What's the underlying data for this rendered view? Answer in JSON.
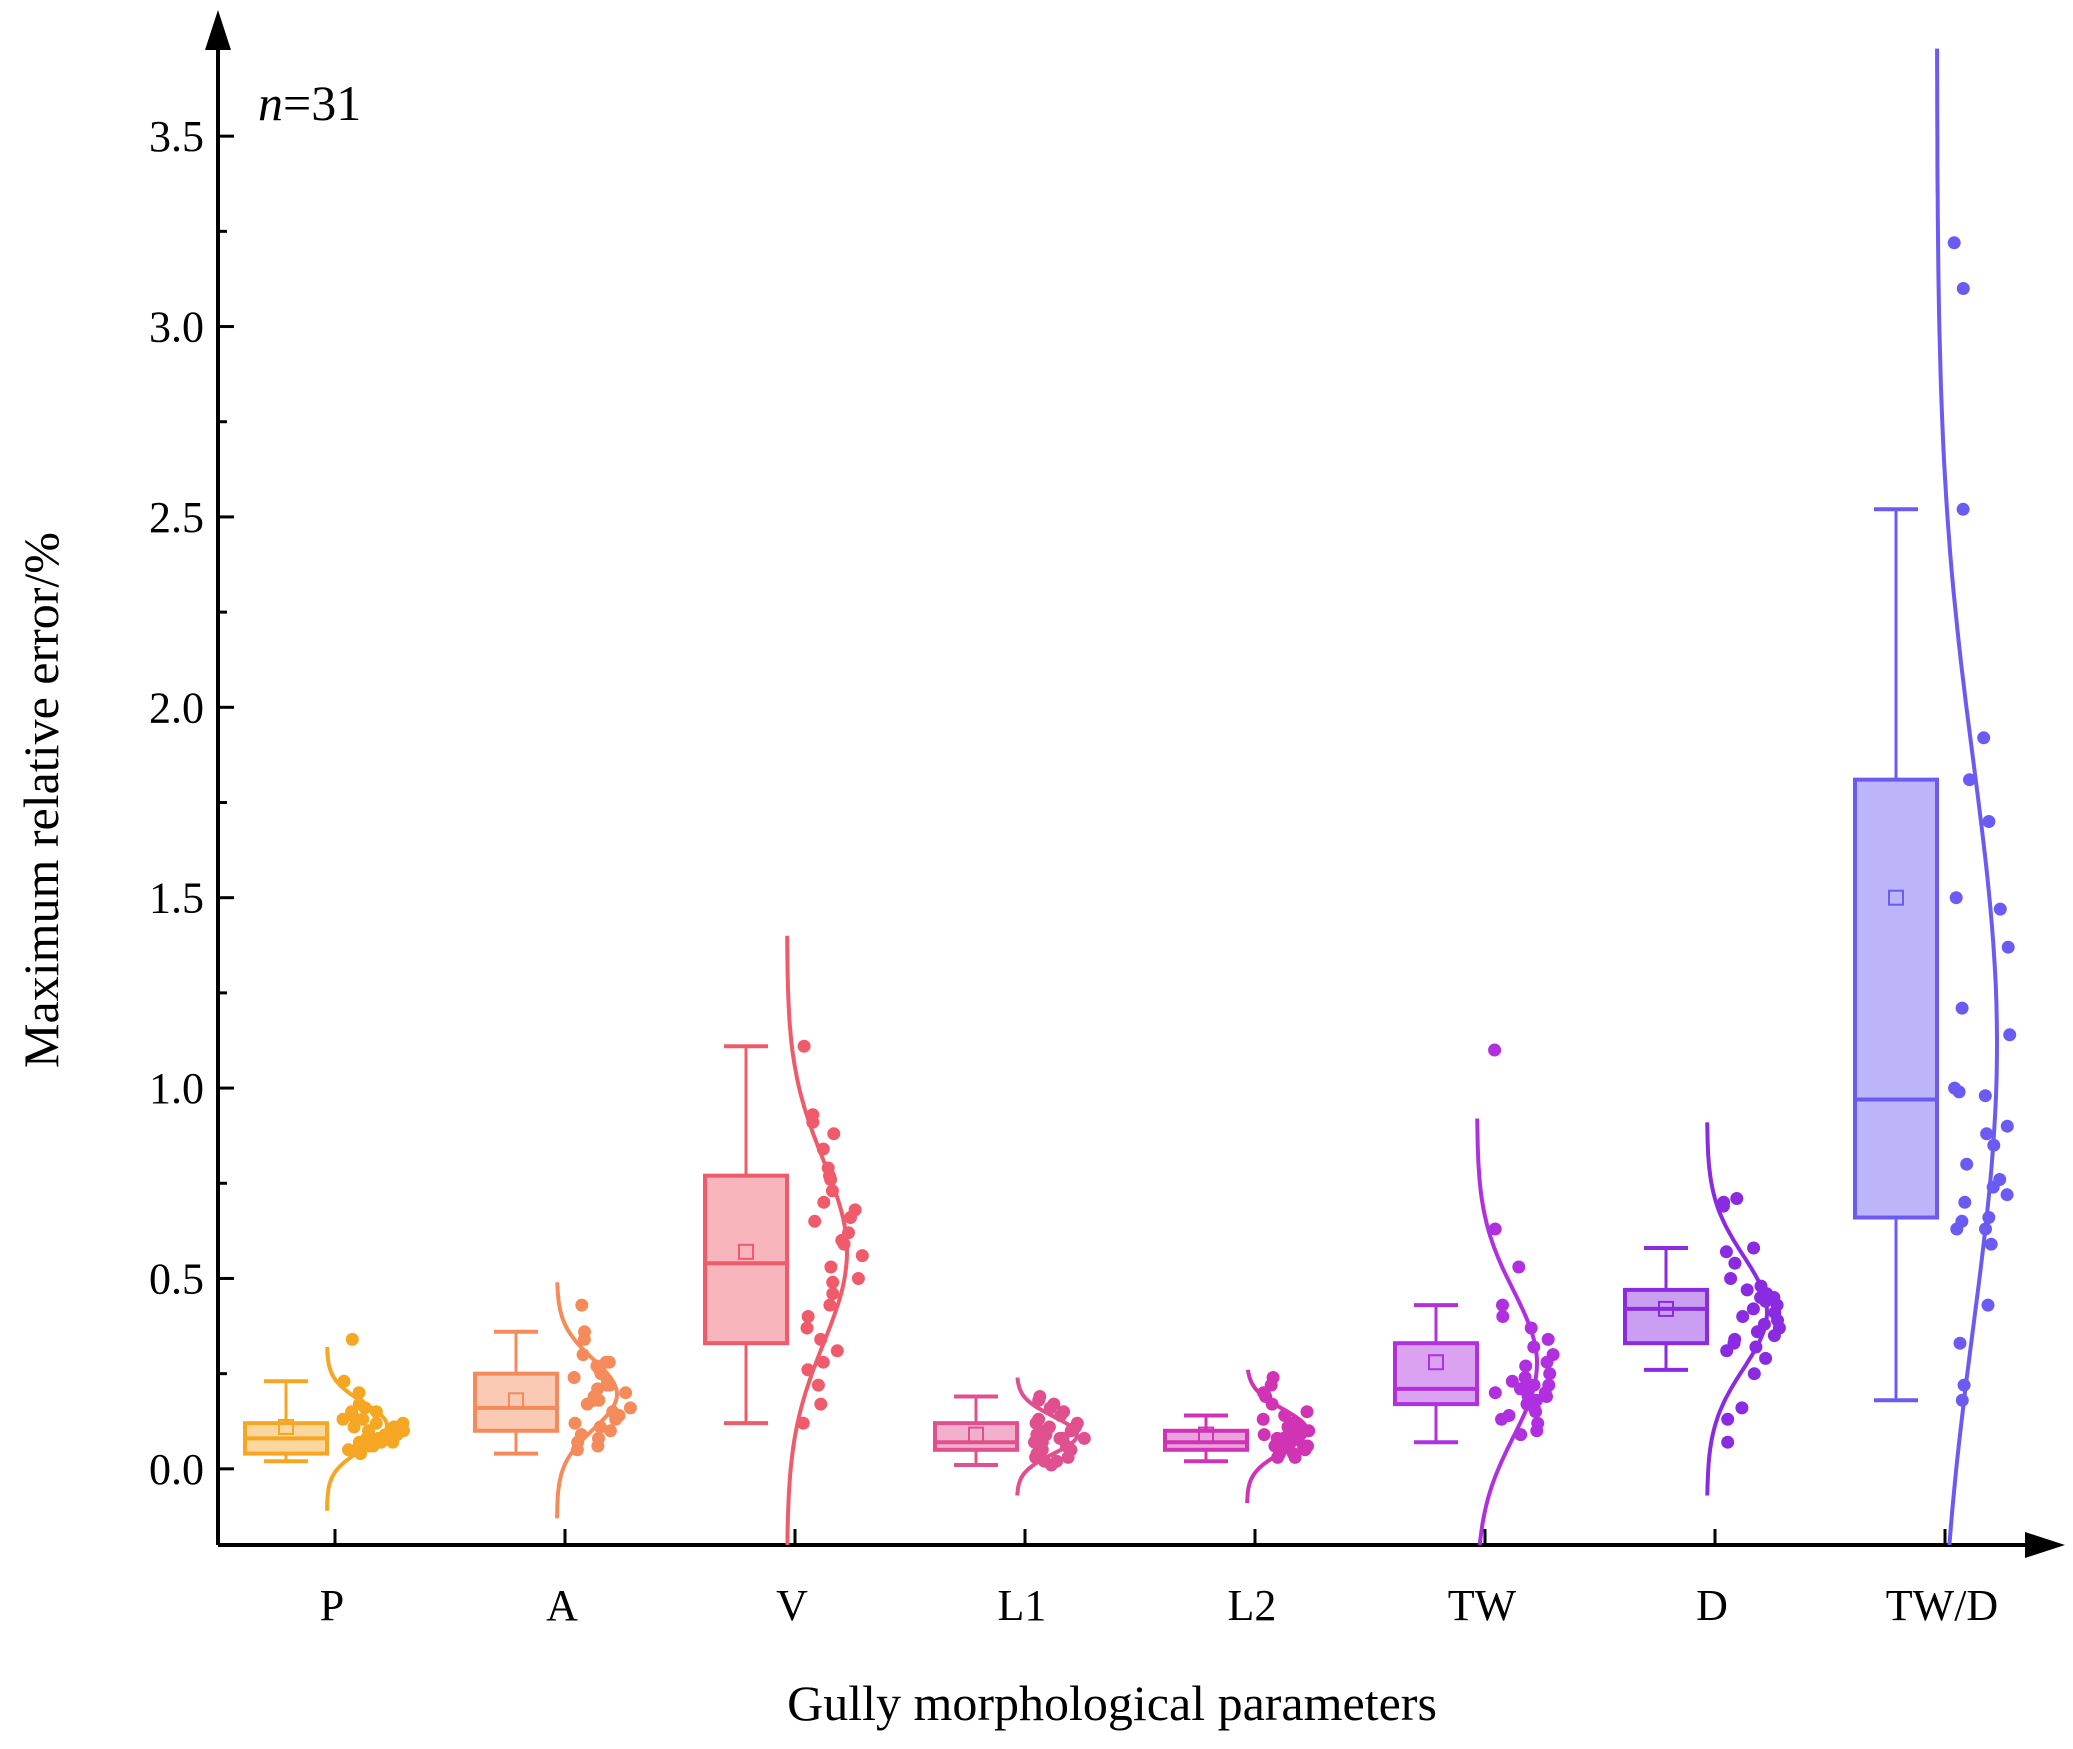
{
  "chart_data": {
    "type": "box-with-distribution",
    "title": "",
    "xlabel": "Gully morphological parameters",
    "ylabel": "Maximum relative error/%",
    "ylim": [
      -0.2,
      3.7
    ],
    "yticks": [
      0.0,
      0.5,
      1.0,
      1.5,
      2.0,
      2.5,
      3.0,
      3.5
    ],
    "ytick_labels": [
      "0.0",
      "0.5",
      "1.0",
      "1.5",
      "2.0",
      "2.5",
      "3.0",
      "3.5"
    ],
    "annotation": {
      "italic": "n",
      "rest": "=31"
    },
    "series": [
      {
        "name": "P",
        "color": "#F5A623",
        "whisker_low": 0.02,
        "q1": 0.04,
        "median": 0.08,
        "q3": 0.12,
        "whisker_high": 0.23,
        "mean": 0.11,
        "curve_range": [
          -0.11,
          0.32
        ],
        "points": [
          0.34,
          0.23,
          0.2,
          0.17,
          0.16,
          0.15,
          0.14,
          0.13,
          0.12,
          0.12,
          0.11,
          0.11,
          0.1,
          0.1,
          0.09,
          0.09,
          0.08,
          0.08,
          0.07,
          0.07,
          0.06,
          0.06,
          0.05,
          0.05,
          0.05,
          0.04,
          0.13,
          0.15,
          0.1,
          0.07,
          0.09
        ]
      },
      {
        "name": "A",
        "color": "#F58A5A",
        "whisker_low": 0.04,
        "q1": 0.1,
        "median": 0.16,
        "q3": 0.25,
        "whisker_high": 0.36,
        "mean": 0.18,
        "curve_range": [
          -0.13,
          0.49
        ],
        "points": [
          0.43,
          0.36,
          0.34,
          0.3,
          0.28,
          0.28,
          0.27,
          0.26,
          0.25,
          0.24,
          0.23,
          0.22,
          0.21,
          0.2,
          0.19,
          0.18,
          0.17,
          0.16,
          0.15,
          0.14,
          0.13,
          0.12,
          0.11,
          0.1,
          0.09,
          0.08,
          0.07,
          0.06,
          0.05,
          0.18,
          0.22
        ]
      },
      {
        "name": "V",
        "color": "#EF5B6B",
        "whisker_low": 0.12,
        "q1": 0.33,
        "median": 0.54,
        "q3": 0.77,
        "whisker_high": 1.11,
        "mean": 0.57,
        "curve_range": [
          -0.2,
          1.4
        ],
        "points": [
          1.11,
          0.93,
          0.91,
          0.88,
          0.84,
          0.79,
          0.77,
          0.76,
          0.73,
          0.7,
          0.68,
          0.66,
          0.65,
          0.62,
          0.59,
          0.56,
          0.53,
          0.5,
          0.49,
          0.46,
          0.43,
          0.4,
          0.37,
          0.34,
          0.31,
          0.28,
          0.26,
          0.22,
          0.17,
          0.12,
          0.6
        ]
      },
      {
        "name": "L1",
        "color": "#E0508E",
        "whisker_low": 0.01,
        "q1": 0.05,
        "median": 0.07,
        "q3": 0.12,
        "whisker_high": 0.19,
        "mean": 0.09,
        "curve_range": [
          -0.07,
          0.24
        ],
        "points": [
          0.19,
          0.18,
          0.17,
          0.16,
          0.15,
          0.14,
          0.13,
          0.12,
          0.12,
          0.11,
          0.11,
          0.1,
          0.1,
          0.09,
          0.09,
          0.08,
          0.08,
          0.07,
          0.07,
          0.06,
          0.06,
          0.05,
          0.05,
          0.04,
          0.04,
          0.03,
          0.03,
          0.02,
          0.02,
          0.01,
          0.08
        ]
      },
      {
        "name": "L2",
        "color": "#D033B4",
        "whisker_low": 0.02,
        "q1": 0.05,
        "median": 0.07,
        "q3": 0.1,
        "whisker_high": 0.14,
        "mean": 0.09,
        "curve_range": [
          -0.09,
          0.26
        ],
        "points": [
          0.24,
          0.22,
          0.2,
          0.19,
          0.17,
          0.15,
          0.14,
          0.13,
          0.12,
          0.11,
          0.1,
          0.1,
          0.09,
          0.09,
          0.08,
          0.08,
          0.07,
          0.07,
          0.06,
          0.06,
          0.05,
          0.05,
          0.04,
          0.04,
          0.03,
          0.03,
          0.11,
          0.12,
          0.08,
          0.06,
          0.05
        ]
      },
      {
        "name": "TW",
        "color": "#B030E0",
        "whisker_low": 0.07,
        "q1": 0.17,
        "median": 0.21,
        "q3": 0.33,
        "whisker_high": 0.43,
        "mean": 0.28,
        "curve_range": [
          -0.2,
          0.92
        ],
        "points": [
          1.1,
          0.63,
          0.53,
          0.43,
          0.4,
          0.37,
          0.34,
          0.32,
          0.3,
          0.28,
          0.27,
          0.25,
          0.24,
          0.23,
          0.22,
          0.21,
          0.21,
          0.2,
          0.2,
          0.19,
          0.19,
          0.18,
          0.17,
          0.16,
          0.15,
          0.14,
          0.13,
          0.12,
          0.1,
          0.09,
          0.22
        ]
      },
      {
        "name": "D",
        "color": "#8A2BE2",
        "whisker_low": 0.26,
        "q1": 0.33,
        "median": 0.42,
        "q3": 0.47,
        "whisker_high": 0.58,
        "mean": 0.42,
        "curve_range": [
          -0.07,
          0.91
        ],
        "points": [
          0.71,
          0.7,
          0.69,
          0.58,
          0.57,
          0.54,
          0.5,
          0.48,
          0.47,
          0.46,
          0.45,
          0.44,
          0.43,
          0.42,
          0.41,
          0.4,
          0.39,
          0.38,
          0.37,
          0.36,
          0.35,
          0.34,
          0.33,
          0.32,
          0.31,
          0.29,
          0.25,
          0.16,
          0.13,
          0.07,
          0.45
        ]
      },
      {
        "name": "TW/D",
        "color": "#6B5BF2",
        "whisker_low": 0.18,
        "q1": 0.66,
        "median": 0.97,
        "q3": 1.81,
        "whisker_high": 2.52,
        "mean": 1.5,
        "curve_range": [
          -0.2,
          3.73
        ],
        "points": [
          3.22,
          3.1,
          2.52,
          1.92,
          1.81,
          1.7,
          1.5,
          1.47,
          1.37,
          1.21,
          1.14,
          0.99,
          0.98,
          0.9,
          0.88,
          0.85,
          0.76,
          0.74,
          0.72,
          0.7,
          0.66,
          0.65,
          0.63,
          0.63,
          0.59,
          0.43,
          0.33,
          0.22,
          0.18,
          1.0,
          0.8
        ]
      }
    ]
  }
}
